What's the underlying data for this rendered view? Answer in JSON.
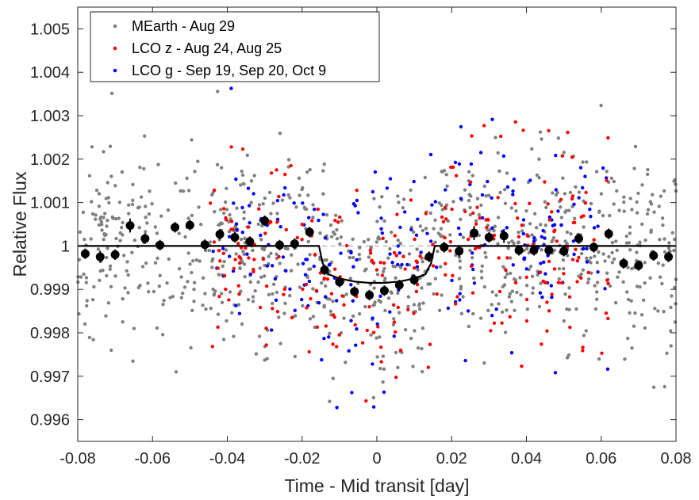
{
  "chart_data": {
    "type": "scatter",
    "title": "",
    "xlabel": "Time - Mid transit [day]",
    "ylabel": "Relative Flux",
    "xlim": [
      -0.08,
      0.08
    ],
    "ylim": [
      0.9955,
      1.0055
    ],
    "xticks": [
      -0.08,
      -0.06,
      -0.04,
      -0.02,
      0,
      0.02,
      0.04,
      0.06,
      0.08
    ],
    "xtick_labels": [
      "-0.08",
      "-0.06",
      "-0.04",
      "-0.02",
      "0",
      "0.02",
      "0.04",
      "0.06",
      "0.08"
    ],
    "yticks": [
      0.996,
      0.997,
      0.998,
      0.999,
      1,
      1.001,
      1.002,
      1.003,
      1.004,
      1.005
    ],
    "ytick_labels": [
      "0.996",
      "0.997",
      "0.998",
      "0.999",
      "1",
      "1.001",
      "1.002",
      "1.003",
      "1.004",
      "1.005"
    ],
    "grid": false,
    "legend_position": "top-left",
    "series": [
      {
        "name": "MEarth - Aug 29",
        "color": "#808080",
        "count": 900,
        "noise": 0.00115,
        "seed": 11
      },
      {
        "name": "LCO z - Aug 24, Aug 25",
        "color": "#ff0000",
        "count": 260,
        "noise": 0.0011,
        "seed": 23
      },
      {
        "name": "LCO g - Sep 19, Sep 20, Oct 9",
        "color": "#0000ff",
        "count": 220,
        "noise": 0.0012,
        "seed": 37
      }
    ],
    "binned": {
      "color": "#000000",
      "x": [
        -0.078,
        -0.074,
        -0.07,
        -0.066,
        -0.062,
        -0.058,
        -0.054,
        -0.05,
        -0.046,
        -0.042,
        -0.038,
        -0.034,
        -0.03,
        -0.026,
        -0.022,
        -0.018,
        -0.014,
        -0.01,
        -0.006,
        -0.002,
        0.002,
        0.006,
        0.01,
        0.014,
        0.018,
        0.022,
        0.026,
        0.03,
        0.034,
        0.038,
        0.042,
        0.046,
        0.05,
        0.054,
        0.058,
        0.062,
        0.066,
        0.07,
        0.074,
        0.078
      ],
      "y": [
        0.99982,
        0.99975,
        0.9998,
        1.00047,
        1.00017,
        1.00002,
        1.00043,
        1.00048,
        1.00003,
        1.00027,
        1.0002,
        1.0001,
        1.00058,
        1.00002,
        1.00005,
        1.00032,
        0.99945,
        0.99917,
        0.99895,
        0.99887,
        0.99897,
        0.9991,
        0.99922,
        0.99975,
        0.99997,
        0.99988,
        1.0003,
        1.0002,
        1.00023,
        0.9999,
        0.9999,
        0.9999,
        0.99988,
        1.00017,
        0.99997,
        1.00028,
        0.9996,
        0.99955,
        0.99978,
        0.99975
      ],
      "yerr": [
        0.00012,
        0.00014,
        0.00012,
        0.00016,
        0.00012,
        0.00012,
        0.00012,
        0.00012,
        0.00012,
        0.00012,
        0.00012,
        0.00012,
        0.00012,
        0.00012,
        0.00012,
        0.00012,
        0.00012,
        0.00012,
        0.00012,
        0.00012,
        0.00012,
        0.00012,
        0.00012,
        0.00012,
        0.00012,
        0.00012,
        0.00016,
        0.00012,
        0.00016,
        0.00012,
        0.00012,
        0.00012,
        0.00012,
        0.00012,
        0.00012,
        0.00012,
        0.00012,
        0.00012,
        0.00012,
        0.00012
      ]
    },
    "model": {
      "color": "#000000",
      "x": [
        -0.08,
        -0.0155,
        -0.0145,
        -0.013,
        -0.01,
        -0.006,
        -0.002,
        0,
        0.002,
        0.006,
        0.01,
        0.013,
        0.0145,
        0.0155,
        0.08
      ],
      "y": [
        1.0,
        1.0,
        0.9996,
        0.99935,
        0.99925,
        0.99918,
        0.99915,
        0.99915,
        0.99915,
        0.99918,
        0.99925,
        0.99935,
        0.9996,
        1.0,
        1.0
      ]
    },
    "reference_line": {
      "y": 1.0,
      "style": "dashed",
      "color": "#999999"
    }
  }
}
